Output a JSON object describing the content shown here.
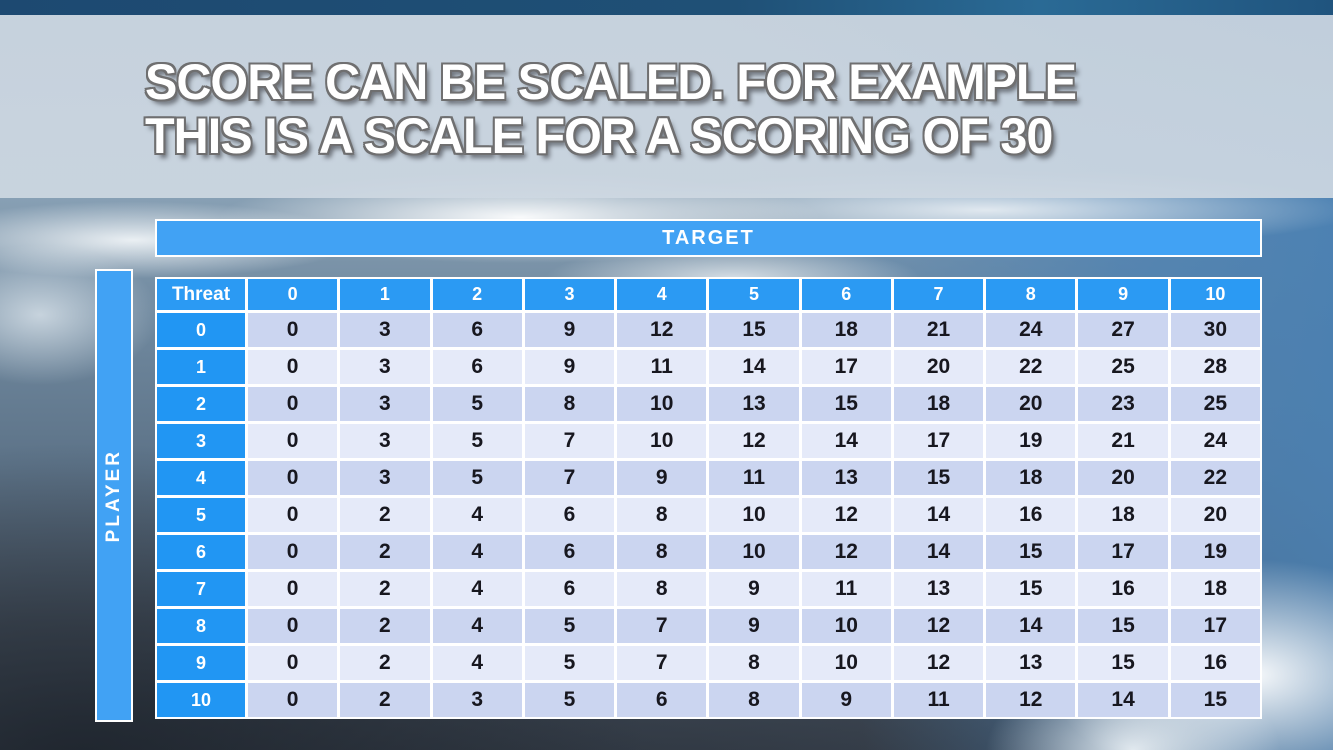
{
  "slide": {
    "title_line1": "SCORE CAN BE SCALED. FOR EXAMPLE",
    "title_line2": "THIS IS A SCALE FOR A SCORING OF 30"
  },
  "matrix": {
    "top_axis_label": "TARGET",
    "left_axis_label": "PLAYER",
    "corner_label": "Threat",
    "col_headers": [
      "0",
      "1",
      "2",
      "3",
      "4",
      "5",
      "6",
      "7",
      "8",
      "9",
      "10"
    ],
    "rows": [
      {
        "header": "0",
        "values": [
          0,
          3,
          6,
          9,
          12,
          15,
          18,
          21,
          24,
          27,
          30
        ]
      },
      {
        "header": "1",
        "values": [
          0,
          3,
          6,
          9,
          11,
          14,
          17,
          20,
          22,
          25,
          28
        ]
      },
      {
        "header": "2",
        "values": [
          0,
          3,
          5,
          8,
          10,
          13,
          15,
          18,
          20,
          23,
          25
        ]
      },
      {
        "header": "3",
        "values": [
          0,
          3,
          5,
          7,
          10,
          12,
          14,
          17,
          19,
          21,
          24
        ]
      },
      {
        "header": "4",
        "values": [
          0,
          3,
          5,
          7,
          9,
          11,
          13,
          15,
          18,
          20,
          22
        ]
      },
      {
        "header": "5",
        "values": [
          0,
          2,
          4,
          6,
          8,
          10,
          12,
          14,
          16,
          18,
          20
        ]
      },
      {
        "header": "6",
        "values": [
          0,
          2,
          4,
          6,
          8,
          10,
          12,
          14,
          15,
          17,
          19
        ]
      },
      {
        "header": "7",
        "values": [
          0,
          2,
          4,
          6,
          8,
          9,
          11,
          13,
          15,
          16,
          18
        ]
      },
      {
        "header": "8",
        "values": [
          0,
          2,
          4,
          5,
          7,
          9,
          10,
          12,
          14,
          15,
          17
        ]
      },
      {
        "header": "9",
        "values": [
          0,
          2,
          4,
          5,
          7,
          8,
          10,
          12,
          13,
          15,
          16
        ]
      },
      {
        "header": "10",
        "values": [
          0,
          2,
          3,
          5,
          6,
          8,
          9,
          11,
          12,
          14,
          15
        ]
      }
    ]
  },
  "colors": {
    "top_bar": "#1E4B75",
    "title_band": "#CBD6E1",
    "title_text": "#FFFFFF",
    "header_blue": "#2B9AF3",
    "axis_bar_blue": "#41A2F4",
    "row_even_bg": "#CBD5F0",
    "row_odd_bg": "#E5EAF9",
    "cell_text": "#17171F",
    "separator": "#FFFFFF"
  }
}
